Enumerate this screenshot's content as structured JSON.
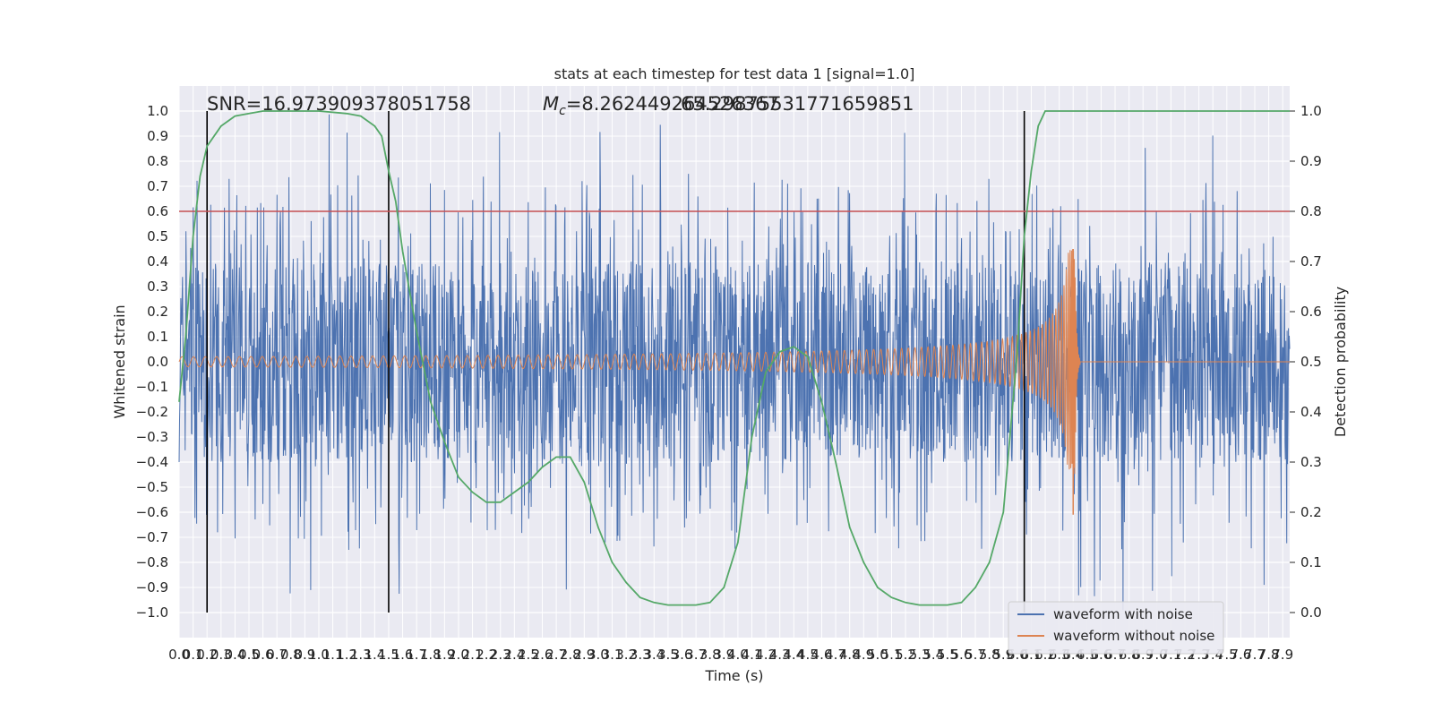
{
  "chart_data": {
    "type": "line",
    "title": "stats at each timestep for test data 1 [signal=1.0]",
    "xlabel": "Time (s)",
    "ylabel": "Whitened strain",
    "ylabel_right": "Detection probability",
    "xlim": [
      0.0,
      7.95
    ],
    "ylim": [
      -1.1,
      1.1
    ],
    "ylim_right": [
      -0.05,
      1.05
    ],
    "x_ticks": [
      "0.0",
      "0.1",
      "0.2",
      "0.3",
      "0.4",
      "0.5",
      "0.6",
      "0.7",
      "0.8",
      "0.9",
      "1.0",
      "1.1",
      "1.2",
      "1.3",
      "1.4",
      "1.5",
      "1.6",
      "1.7",
      "1.8",
      "1.9",
      "2.0",
      "2.1",
      "2.2",
      "2.3",
      "2.4",
      "2.5",
      "2.6",
      "2.7",
      "2.8",
      "2.9",
      "3.0",
      "3.1",
      "3.2",
      "3.3",
      "3.4",
      "3.5",
      "3.6",
      "3.7",
      "3.8",
      "3.9",
      "4.0",
      "4.1",
      "4.2",
      "4.3",
      "4.4",
      "4.5",
      "4.6",
      "4.7",
      "4.8",
      "4.9",
      "5.0",
      "5.1",
      "5.2",
      "5.3",
      "5.4",
      "5.5",
      "5.6",
      "5.7",
      "5.8",
      "5.9",
      "6.0",
      "6.1",
      "6.2",
      "6.3",
      "6.4",
      "6.5",
      "6.6",
      "6.7",
      "6.8",
      "6.9",
      "7.0",
      "7.1",
      "7.2",
      "7.3",
      "7.4",
      "7.5",
      "7.6",
      "7.7",
      "7.8",
      "7.9"
    ],
    "y_ticks": [
      "1.0",
      "0.9",
      "0.8",
      "0.7",
      "0.6",
      "0.5",
      "0.4",
      "0.3",
      "0.2",
      "0.1",
      "0.0",
      "−0.1",
      "−0.2",
      "−0.3",
      "−0.4",
      "−0.5",
      "−0.6",
      "−0.7",
      "−0.8",
      "−0.9",
      "−1.0"
    ],
    "y_tick_values": [
      1.0,
      0.9,
      0.8,
      0.7,
      0.6,
      0.5,
      0.4,
      0.3,
      0.2,
      0.1,
      0.0,
      -0.1,
      -0.2,
      -0.3,
      -0.4,
      -0.5,
      -0.6,
      -0.7,
      -0.8,
      -0.9,
      -1.0
    ],
    "y_right_ticks": [
      "1.0",
      "0.9",
      "0.8",
      "0.7",
      "0.6",
      "0.5",
      "0.4",
      "0.3",
      "0.2",
      "0.1",
      "0.0"
    ],
    "y_right_tick_values": [
      1.0,
      0.9,
      0.8,
      0.7,
      0.6,
      0.5,
      0.4,
      0.3,
      0.2,
      0.1,
      0.0
    ],
    "grid": true,
    "series": [
      {
        "name": "waveform with noise",
        "color": "#4c72b0",
        "noise_envelope": 0.4,
        "peak_max": 1.0,
        "peak_min": -1.0
      },
      {
        "name": "waveform without noise",
        "color": "#dd8452",
        "chirp_start_amplitude": 0.02,
        "chirp_end_amplitude": 0.45,
        "merger_time": 6.4,
        "min_at_merger": -0.61
      },
      {
        "color": "#55a868",
        "axis": "right",
        "x": [
          0.0,
          0.05,
          0.1,
          0.15,
          0.2,
          0.3,
          0.4,
          0.5,
          0.6,
          0.8,
          1.0,
          1.2,
          1.3,
          1.4,
          1.45,
          1.5,
          1.55,
          1.6,
          1.7,
          1.8,
          1.9,
          2.0,
          2.1,
          2.2,
          2.3,
          2.4,
          2.5,
          2.6,
          2.7,
          2.8,
          2.9,
          3.0,
          3.1,
          3.2,
          3.3,
          3.4,
          3.5,
          3.6,
          3.7,
          3.8,
          3.9,
          4.0,
          4.1,
          4.2,
          4.3,
          4.4,
          4.5,
          4.6,
          4.7,
          4.8,
          4.9,
          5.0,
          5.1,
          5.2,
          5.3,
          5.4,
          5.5,
          5.6,
          5.7,
          5.8,
          5.9,
          6.0,
          6.05,
          6.1,
          6.15,
          6.2,
          6.3,
          6.5,
          7.0,
          7.5,
          7.95
        ],
        "y": [
          0.42,
          0.56,
          0.75,
          0.87,
          0.93,
          0.97,
          0.99,
          0.995,
          1.0,
          1.0,
          1.0,
          0.995,
          0.99,
          0.97,
          0.95,
          0.88,
          0.82,
          0.72,
          0.56,
          0.42,
          0.34,
          0.27,
          0.24,
          0.22,
          0.22,
          0.24,
          0.26,
          0.29,
          0.31,
          0.31,
          0.26,
          0.17,
          0.1,
          0.06,
          0.03,
          0.02,
          0.015,
          0.015,
          0.015,
          0.02,
          0.05,
          0.14,
          0.35,
          0.48,
          0.52,
          0.53,
          0.51,
          0.42,
          0.3,
          0.17,
          0.1,
          0.05,
          0.03,
          0.02,
          0.015,
          0.015,
          0.015,
          0.02,
          0.05,
          0.1,
          0.2,
          0.52,
          0.75,
          0.88,
          0.97,
          1.0,
          1.0,
          1.0,
          1.0,
          1.0,
          1.0
        ]
      }
    ],
    "threshold": {
      "value": 0.8,
      "color": "#c44e52"
    },
    "vertical_lines": [
      0.2,
      1.5,
      6.05
    ],
    "annotations": [
      "SNR=16.973909378051758",
      "M_c=8.262449264526367",
      "65.29875531771659851"
    ],
    "legend_position": "lower-right"
  }
}
